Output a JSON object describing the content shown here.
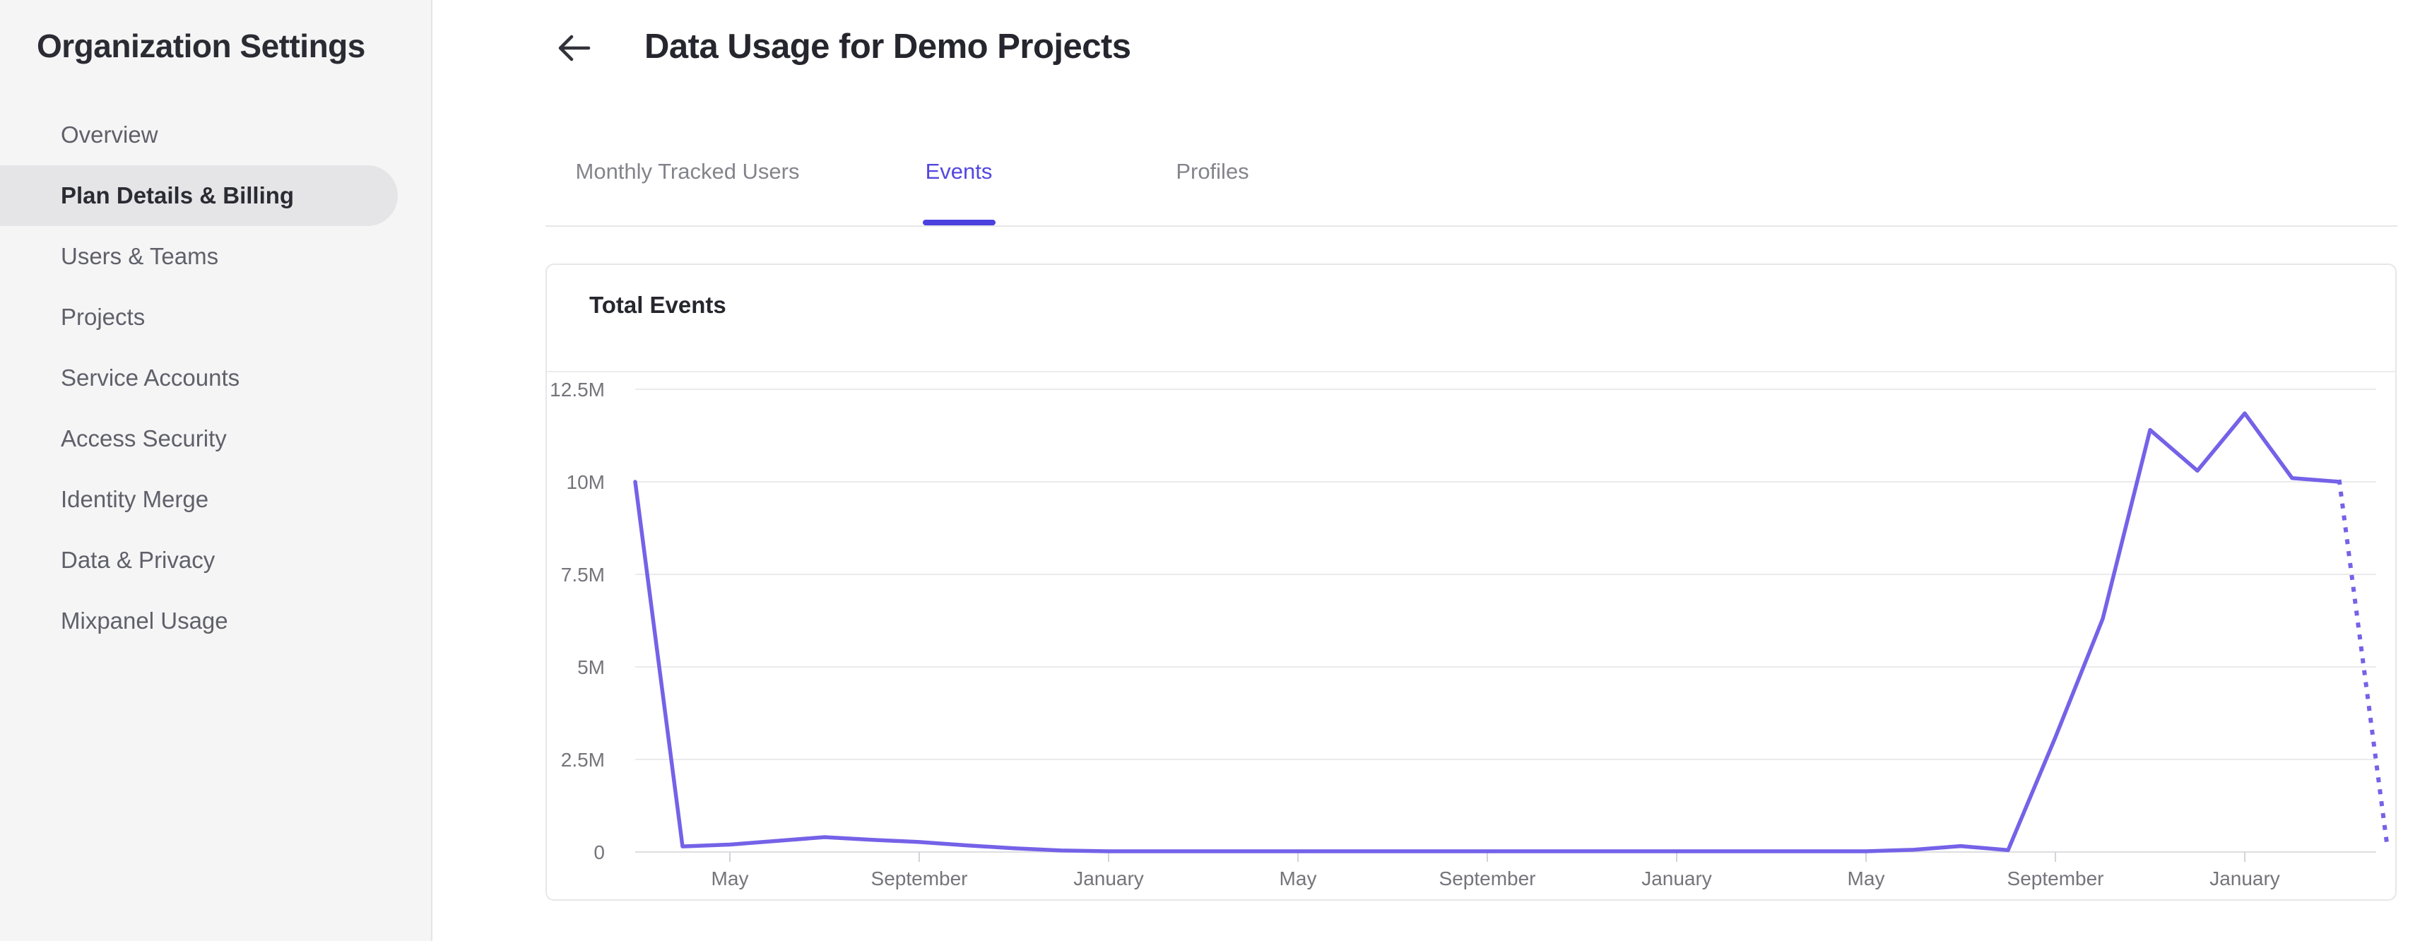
{
  "sidebar": {
    "title": "Organization Settings",
    "items": [
      {
        "label": "Overview",
        "selected": false
      },
      {
        "label": "Plan Details & Billing",
        "selected": true
      },
      {
        "label": "Users & Teams",
        "selected": false
      },
      {
        "label": "Projects",
        "selected": false
      },
      {
        "label": "Service Accounts",
        "selected": false
      },
      {
        "label": "Access Security",
        "selected": false
      },
      {
        "label": "Identity Merge",
        "selected": false
      },
      {
        "label": "Data & Privacy",
        "selected": false
      },
      {
        "label": "Mixpanel Usage",
        "selected": false
      }
    ]
  },
  "header": {
    "title": "Data Usage for Demo Projects",
    "back_icon": "left-arrow"
  },
  "tabs": [
    {
      "label": "Monthly Tracked Users",
      "active": false
    },
    {
      "label": "Events",
      "active": true
    },
    {
      "label": "Profiles",
      "active": false
    }
  ],
  "card": {
    "title": "Total Events"
  },
  "colors": {
    "brand_purple": "#5247e0",
    "tab_underline": "#4c41de",
    "line_purple": "#7462e8",
    "grid_line": "#ebebed",
    "zero_axis_line": "#dedee1",
    "axis_label_gray": "#74747b",
    "sidebar_bg": "#f5f5f6",
    "selected_pill": "#e5e5e7"
  },
  "chart_data": {
    "type": "line",
    "title": "Total Events",
    "ylabel": "",
    "xlabel": "",
    "unit": "events per month (millions)",
    "ylim_millions": [
      0,
      12.5
    ],
    "grid": "horizontal",
    "legend": "none",
    "y_tick_labels": [
      "0",
      "2.5M",
      "5M",
      "7.5M",
      "10M",
      "12.5M"
    ],
    "y_tick_values_millions": [
      0,
      2.5,
      5,
      7.5,
      10,
      12.5
    ],
    "x_tick_labels": [
      "May",
      "September",
      "January",
      "May",
      "September",
      "January",
      "May",
      "September",
      "January"
    ],
    "x_tick_every_months": 4,
    "first_point_months_before_first_tick": 2,
    "points_monthly_millions": [
      10,
      0.15,
      0.2,
      0.3,
      0.4,
      0.33,
      0.27,
      0.18,
      0.1,
      0.04,
      0.02,
      0.02,
      0.02,
      0.02,
      0.02,
      0.02,
      0.02,
      0.02,
      0.02,
      0.02,
      0.02,
      0.02,
      0.02,
      0.02,
      0.02,
      0.02,
      0.02,
      0.06,
      0.16,
      0.05,
      3.1,
      6.3,
      11.4,
      10.3,
      11.85,
      10.1,
      10.0,
      0.25
    ],
    "last_segment_style": "dotted_projection"
  }
}
